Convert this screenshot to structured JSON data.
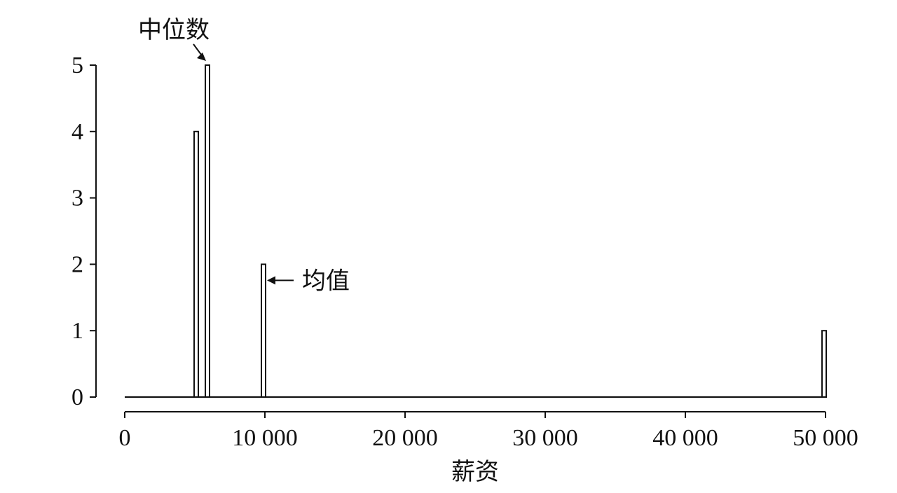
{
  "chart_data": {
    "type": "bar",
    "xlabel": "薪资",
    "ylabel": "",
    "xlim": [
      0,
      50000
    ],
    "ylim": [
      0,
      5
    ],
    "xticks": [
      {
        "value": 0,
        "label": "0"
      },
      {
        "value": 10000,
        "label": "10 000"
      },
      {
        "value": 20000,
        "label": "20 000"
      },
      {
        "value": 30000,
        "label": "30 000"
      },
      {
        "value": 40000,
        "label": "40 000"
      },
      {
        "value": 50000,
        "label": "50 000"
      }
    ],
    "yticks": [
      {
        "value": 0,
        "label": "0"
      },
      {
        "value": 1,
        "label": "1"
      },
      {
        "value": 2,
        "label": "2"
      },
      {
        "value": 3,
        "label": "3"
      },
      {
        "value": 4,
        "label": "4"
      },
      {
        "value": 5,
        "label": "5"
      }
    ],
    "bars": [
      {
        "x": 5100,
        "value": 4
      },
      {
        "x": 5900,
        "value": 5
      },
      {
        "x": 9900,
        "value": 2
      },
      {
        "x": 49900,
        "value": 1
      }
    ],
    "annotations": [
      {
        "id": "median",
        "text": "中位数",
        "target_x": 5900,
        "target_y": 5
      },
      {
        "id": "mean",
        "text": "均值",
        "target_x": 9900,
        "target_y": 2
      }
    ],
    "grid": false,
    "colors": {
      "ink": "#111111",
      "bar_fill": "#ffffff",
      "background": "#ffffff"
    }
  }
}
